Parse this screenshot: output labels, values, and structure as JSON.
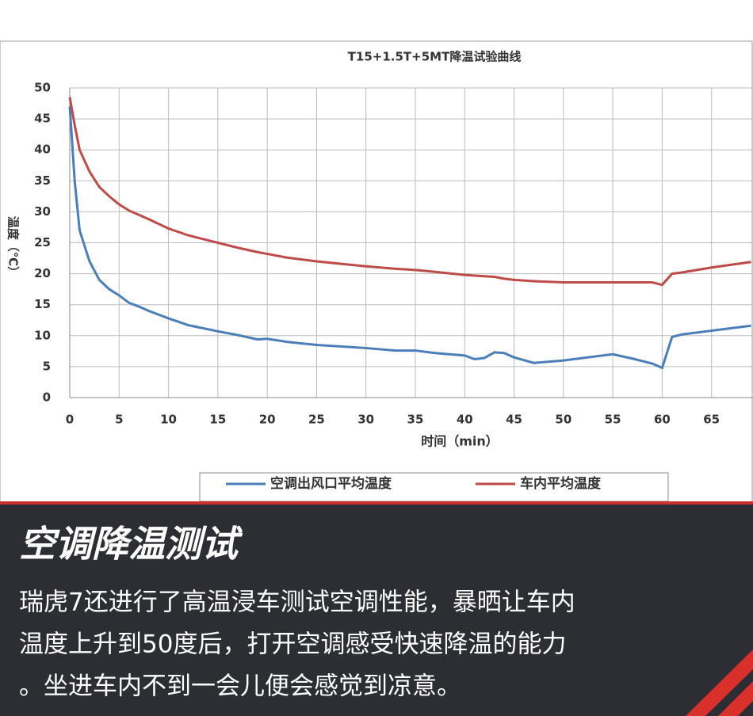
{
  "chart_data": {
    "type": "line",
    "title": "T15+1.5T+5MT降温试验曲线",
    "x_label": "时间（min）",
    "y_label": "温度（℃）",
    "x": [
      0,
      0.5,
      1,
      2,
      3,
      4,
      5,
      6,
      7,
      8,
      10,
      12,
      15,
      17,
      19,
      20,
      22,
      25,
      30,
      33,
      35,
      37,
      40,
      41,
      42,
      43,
      44,
      45,
      47,
      50,
      55,
      57,
      59,
      60,
      61,
      62,
      65,
      69
    ],
    "series": [
      {
        "name": "空调出风口平均温度",
        "color": "#4a7ebb",
        "values": [
          47,
          35,
          27,
          22,
          19,
          17.5,
          16.5,
          15.3,
          14.7,
          14,
          12.8,
          11.7,
          10.7,
          10.1,
          9.4,
          9.5,
          9,
          8.5,
          8,
          7.6,
          7.6,
          7.2,
          6.8,
          6.2,
          6.4,
          7.3,
          7.2,
          6.5,
          5.6,
          6,
          7,
          6.3,
          5.5,
          4.8,
          9.8,
          10.2,
          10.8,
          11.6
        ]
      },
      {
        "name": "车内平均温度",
        "color": "#be4b48",
        "values": [
          48.5,
          44,
          40,
          36.5,
          34,
          32.5,
          31.2,
          30.2,
          29.5,
          28.8,
          27.3,
          26.2,
          25,
          24.2,
          23.5,
          23.2,
          22.6,
          22,
          21.2,
          20.8,
          20.6,
          20.3,
          19.8,
          19.7,
          19.6,
          19.5,
          19.2,
          19,
          18.8,
          18.6,
          18.6,
          18.6,
          18.6,
          18.2,
          20,
          20.2,
          21,
          21.9
        ]
      }
    ],
    "xlim": [
      0,
      69.2
    ],
    "xticks": [
      0,
      5,
      10,
      15,
      20,
      25,
      30,
      35,
      40,
      45,
      50,
      55,
      60,
      65
    ],
    "ylim": [
      0,
      50
    ],
    "yticks": [
      0,
      5,
      10,
      15,
      20,
      25,
      30,
      35,
      40,
      45,
      50
    ],
    "grid": true
  },
  "caption": {
    "heading": "空调降温测试",
    "lines": [
      "瑞虎7还进行了高温浸车测试空调性能，暴晒让车内",
      "温度上升到50度后，打开空调感受快速降温的能力",
      "。坐进车内不到一会儿便会感觉到凉意。"
    ]
  }
}
